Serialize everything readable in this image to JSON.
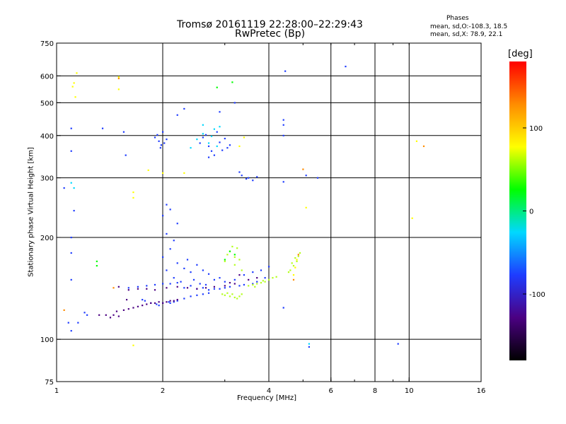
{
  "chart_data": {
    "type": "scatter",
    "title": "Tromsø 20161119 22:28:00–22:29:43",
    "subtitle": "RwPretec (Bp)",
    "xlabel": "Frequency [MHz]",
    "ylabel": "Stationary phase Virtual Height [km]",
    "x_scale": "log",
    "y_scale": "log",
    "xlim": [
      1,
      16
    ],
    "ylim": [
      75,
      750
    ],
    "x_ticks": [
      1,
      2,
      4,
      6,
      8,
      10,
      16
    ],
    "y_ticks": [
      75,
      100,
      200,
      300,
      400,
      500,
      600,
      750
    ],
    "x_gridlines": [
      2,
      4,
      6,
      8,
      10
    ],
    "y_gridlines": [
      100,
      200,
      300,
      400,
      500,
      600
    ],
    "grid": true,
    "colorbar": {
      "label": "[deg]",
      "range": [
        -180,
        180
      ],
      "ticks": [
        -100,
        0,
        100
      ],
      "colormap": "rainbow",
      "stops": [
        "#000000",
        "#4b0082",
        "#1e3cff",
        "#00d8ff",
        "#00ff00",
        "#ffff00",
        "#ff8c00",
        "#ff0000"
      ]
    },
    "stats": {
      "heading": "Phases",
      "o_mode": "mean, sd,O:-108.3, 18.5",
      "x_mode": "mean, sd,X:  78.9, 22.1"
    },
    "series": [
      {
        "color": "#1e3cff",
        "points": [
          [
            1.95,
            385
          ],
          [
            1.9,
            395
          ],
          [
            1.98,
            375
          ],
          [
            2.0,
            410
          ],
          [
            2.05,
            390
          ],
          [
            1.93,
            402
          ],
          [
            1.97,
            368
          ],
          [
            2.02,
            380
          ],
          [
            2.6,
            395
          ],
          [
            2.7,
            372
          ],
          [
            2.75,
            360
          ],
          [
            2.9,
            382
          ],
          [
            3.05,
            368
          ],
          [
            3.0,
            392
          ],
          [
            2.65,
            402
          ],
          [
            2.85,
            410
          ],
          [
            2.8,
            350
          ],
          [
            2.95,
            362
          ],
          [
            3.1,
            375
          ],
          [
            2.55,
            380
          ],
          [
            2.7,
            345
          ],
          [
            3.3,
            312
          ],
          [
            3.35,
            305
          ],
          [
            3.5,
            300
          ],
          [
            3.6,
            295
          ],
          [
            3.7,
            302
          ],
          [
            3.45,
            298
          ],
          [
            4.4,
            292
          ],
          [
            5.5,
            300
          ],
          [
            5.1,
            305
          ],
          [
            2.05,
            250
          ],
          [
            2.1,
            242
          ],
          [
            2.0,
            232
          ],
          [
            2.2,
            220
          ],
          [
            2.05,
            205
          ],
          [
            2.15,
            196
          ],
          [
            2.1,
            185
          ],
          [
            2.0,
            175
          ],
          [
            2.2,
            168
          ],
          [
            2.3,
            162
          ],
          [
            2.05,
            160
          ],
          [
            2.15,
            152
          ],
          [
            2.4,
            158
          ],
          [
            2.5,
            166
          ],
          [
            2.6,
            160
          ],
          [
            2.7,
            156
          ],
          [
            2.9,
            152
          ],
          [
            2.35,
            172
          ],
          [
            2.45,
            150
          ],
          [
            2.65,
            145
          ],
          [
            2.25,
            148
          ],
          [
            2.55,
            146
          ],
          [
            2.8,
            150
          ],
          [
            3.0,
            148
          ],
          [
            3.2,
            150
          ],
          [
            3.4,
            155
          ],
          [
            3.6,
            158
          ],
          [
            3.8,
            160
          ],
          [
            4.0,
            164
          ],
          [
            1.6,
            142
          ],
          [
            1.7,
            143
          ],
          [
            1.8,
            144
          ],
          [
            1.9,
            145
          ],
          [
            2.0,
            146
          ],
          [
            2.1,
            146
          ],
          [
            2.2,
            147
          ],
          [
            2.3,
            142
          ],
          [
            2.5,
            141
          ],
          [
            2.7,
            140
          ],
          [
            2.9,
            141
          ],
          [
            3.1,
            143
          ],
          [
            3.4,
            145
          ],
          [
            3.7,
            148
          ],
          [
            3.9,
            152
          ],
          [
            2.4,
            144
          ],
          [
            2.6,
            142
          ],
          [
            2.8,
            141
          ],
          [
            3.0,
            142
          ],
          [
            3.3,
            144
          ],
          [
            3.6,
            146
          ],
          [
            1.78,
            130
          ],
          [
            1.85,
            128
          ],
          [
            1.92,
            127
          ],
          [
            2.0,
            128
          ],
          [
            2.08,
            129
          ],
          [
            2.15,
            129
          ],
          [
            2.2,
            130
          ],
          [
            2.3,
            132
          ],
          [
            2.4,
            134
          ],
          [
            2.5,
            135
          ],
          [
            2.6,
            136
          ],
          [
            2.7,
            137
          ],
          [
            1.75,
            131
          ],
          [
            1.95,
            126
          ],
          [
            2.1,
            128
          ],
          [
            1.1,
            150
          ],
          [
            1.1,
            180
          ],
          [
            1.1,
            200
          ],
          [
            1.12,
            240
          ],
          [
            1.05,
            280
          ],
          [
            1.1,
            360
          ],
          [
            1.1,
            420
          ],
          [
            1.2,
            120
          ],
          [
            1.15,
            112
          ],
          [
            1.22,
            118
          ],
          [
            1.08,
            112
          ],
          [
            1.1,
            106
          ],
          [
            1.35,
            420
          ],
          [
            1.55,
            410
          ],
          [
            1.57,
            350
          ],
          [
            4.4,
            445
          ],
          [
            4.4,
            430
          ],
          [
            4.4,
            400
          ],
          [
            4.4,
            124
          ],
          [
            5.2,
            95
          ],
          [
            6.6,
            640
          ],
          [
            9.3,
            97
          ],
          [
            4.45,
            620
          ],
          [
            3.2,
            500
          ],
          [
            2.9,
            470
          ],
          [
            2.3,
            480
          ],
          [
            2.2,
            460
          ]
        ]
      },
      {
        "color": "#4b0082",
        "points": [
          [
            1.32,
            118
          ],
          [
            1.38,
            118
          ],
          [
            1.45,
            118
          ],
          [
            1.5,
            117
          ],
          [
            1.55,
            122
          ],
          [
            1.6,
            123
          ],
          [
            1.65,
            124
          ],
          [
            1.7,
            125
          ],
          [
            1.75,
            126
          ],
          [
            1.8,
            127
          ],
          [
            1.85,
            128
          ],
          [
            1.9,
            128
          ],
          [
            1.95,
            129
          ],
          [
            2.0,
            128
          ],
          [
            2.05,
            129
          ],
          [
            2.1,
            130
          ],
          [
            2.15,
            130
          ],
          [
            2.2,
            131
          ],
          [
            1.6,
            140
          ],
          [
            1.7,
            141
          ],
          [
            1.8,
            141
          ],
          [
            1.9,
            140
          ],
          [
            2.05,
            142
          ],
          [
            2.2,
            143
          ],
          [
            2.35,
            142
          ],
          [
            2.5,
            141
          ],
          [
            2.65,
            142
          ],
          [
            2.8,
            143
          ],
          [
            3.0,
            144
          ],
          [
            3.2,
            146
          ],
          [
            3.5,
            150
          ],
          [
            3.7,
            152
          ],
          [
            1.42,
            116
          ],
          [
            1.48,
            121
          ],
          [
            1.5,
            143
          ],
          [
            1.58,
            131
          ],
          [
            3.3,
            155
          ],
          [
            3.1,
            147
          ]
        ]
      },
      {
        "color": "#b4ff1e",
        "points": [
          [
            3.0,
            135
          ],
          [
            3.1,
            134
          ],
          [
            3.2,
            133
          ],
          [
            3.3,
            134
          ],
          [
            3.15,
            136
          ],
          [
            3.05,
            137
          ],
          [
            2.95,
            136
          ],
          [
            3.25,
            132
          ],
          [
            3.35,
            136
          ],
          [
            3.5,
            144
          ],
          [
            3.6,
            145
          ],
          [
            3.7,
            146
          ],
          [
            3.8,
            147
          ],
          [
            3.9,
            148
          ],
          [
            4.0,
            150
          ],
          [
            4.1,
            152
          ],
          [
            4.2,
            153
          ],
          [
            3.65,
            143
          ],
          [
            3.85,
            149
          ],
          [
            3.05,
            178
          ],
          [
            3.1,
            182
          ],
          [
            3.2,
            175
          ],
          [
            3.25,
            186
          ],
          [
            3.15,
            188
          ],
          [
            3.3,
            172
          ],
          [
            3.0,
            170
          ],
          [
            3.2,
            166
          ],
          [
            3.35,
            160
          ],
          [
            4.6,
            160
          ],
          [
            4.7,
            165
          ],
          [
            4.8,
            170
          ],
          [
            4.85,
            176
          ],
          [
            4.9,
            180
          ],
          [
            4.75,
            174
          ],
          [
            4.65,
            168
          ],
          [
            4.55,
            158
          ]
        ]
      },
      {
        "color": "#ffff00",
        "points": [
          [
            1.14,
            612
          ],
          [
            1.12,
            572
          ],
          [
            1.11,
            558
          ],
          [
            1.13,
            520
          ],
          [
            1.5,
            596
          ],
          [
            1.5,
            548
          ],
          [
            1.65,
            262
          ],
          [
            1.65,
            272
          ],
          [
            1.82,
            316
          ],
          [
            2.0,
            310
          ],
          [
            2.3,
            310
          ],
          [
            10.5,
            385
          ],
          [
            10.2,
            228
          ],
          [
            5.1,
            245
          ],
          [
            1.65,
            96
          ],
          [
            4.8,
            172
          ],
          [
            4.75,
            163
          ],
          [
            4.7,
            155
          ],
          [
            3.3,
            372
          ],
          [
            3.4,
            395
          ]
        ]
      },
      {
        "color": "#ff8c00",
        "points": [
          [
            1.5,
            590
          ],
          [
            5.0,
            318
          ],
          [
            4.85,
            178
          ],
          [
            4.7,
            150
          ],
          [
            1.05,
            122
          ],
          [
            1.45,
            142
          ],
          [
            11.0,
            372
          ]
        ]
      },
      {
        "color": "#00d8ff",
        "points": [
          [
            2.8,
            418
          ],
          [
            2.9,
            425
          ],
          [
            2.75,
            398
          ],
          [
            2.6,
            405
          ],
          [
            2.7,
            380
          ],
          [
            2.4,
            368
          ],
          [
            2.5,
            390
          ],
          [
            2.85,
            372
          ],
          [
            5.2,
            97
          ],
          [
            1.1,
            290
          ],
          [
            1.12,
            280
          ],
          [
            2.6,
            430
          ]
        ]
      },
      {
        "color": "#00ff00",
        "points": [
          [
            3.1,
            182
          ],
          [
            3.2,
            178
          ],
          [
            3.0,
            172
          ],
          [
            1.3,
            170
          ],
          [
            3.15,
            575
          ],
          [
            2.85,
            555
          ],
          [
            1.3,
            165
          ]
        ]
      }
    ]
  }
}
